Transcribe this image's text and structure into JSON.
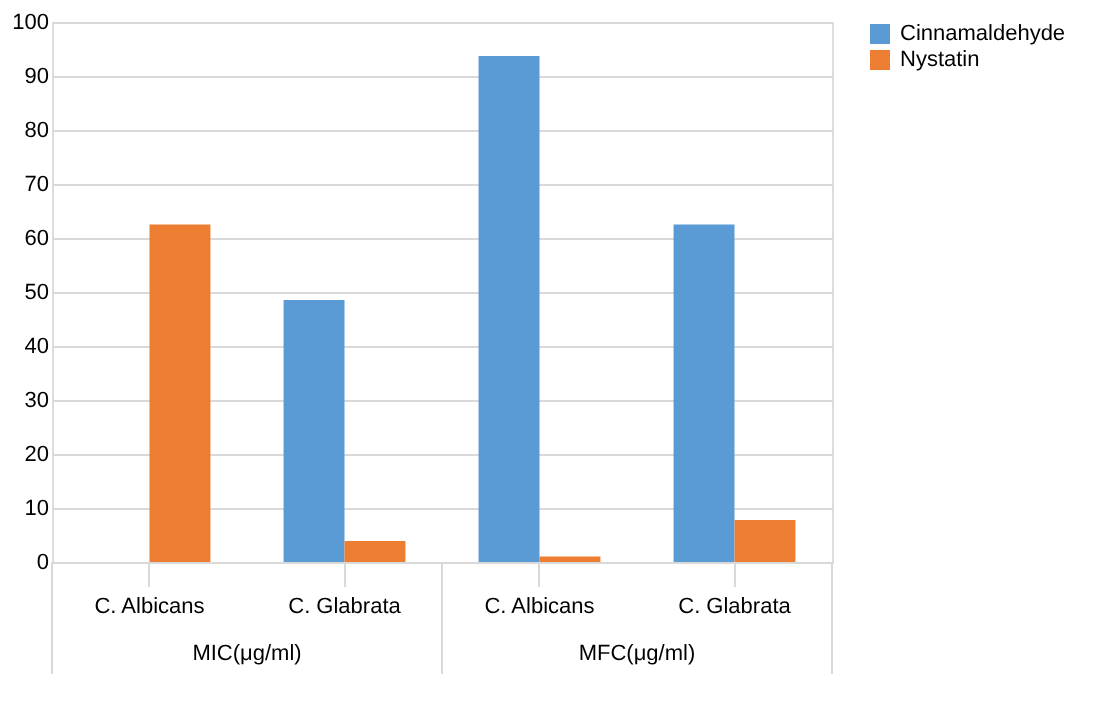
{
  "chart_data": {
    "type": "bar",
    "categories": [
      "C. Albicans",
      "C. Glabrata",
      "C. Albicans",
      "C. Glabrata"
    ],
    "series": [
      {
        "name": "Cinnamaldehyde",
        "color": "#5b9bd5",
        "values": [
          0,
          48.5,
          93.7,
          62.5
        ]
      },
      {
        "name": "Nystatin",
        "color": "#ed7d31",
        "values": [
          62.5,
          3.9,
          1,
          7.8
        ]
      }
    ],
    "annotations": [
      "MIC(μg/ml)",
      "MFC(μg/ml)"
    ],
    "ylim": [
      0,
      100
    ],
    "yticks": [
      0,
      10,
      20,
      30,
      40,
      50,
      60,
      70,
      80,
      90,
      100
    ],
    "grid": "y",
    "legend": "right"
  }
}
